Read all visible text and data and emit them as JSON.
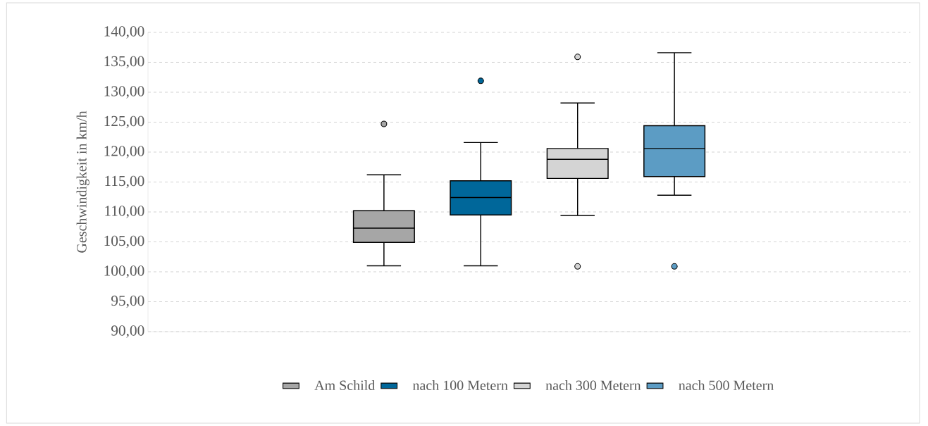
{
  "chart_data": {
    "type": "box",
    "ylabel": "Geschwindigkeit in km/h",
    "categories": [
      null
    ],
    "ylim": [
      90,
      140
    ],
    "yticks": [
      {
        "value": 90,
        "label": "90,00"
      },
      {
        "value": 95,
        "label": "95,00"
      },
      {
        "value": 100,
        "label": "100,00"
      },
      {
        "value": 105,
        "label": "105,00"
      },
      {
        "value": 110,
        "label": "110,00"
      },
      {
        "value": 115,
        "label": "115,00"
      },
      {
        "value": 120,
        "label": "120,00"
      },
      {
        "value": 125,
        "label": "125,00"
      },
      {
        "value": 130,
        "label": "130,00"
      },
      {
        "value": 135,
        "label": "135,00"
      },
      {
        "value": 140,
        "label": "140,00"
      }
    ],
    "grid": "y",
    "legend": "bottom",
    "tick_labels": "y",
    "series": [
      {
        "name": "Am Schild",
        "color": "#a6a6a6",
        "boxes": [
          {
            "low": 101.0,
            "q1": 104.9,
            "median": 107.3,
            "q3": 110.2,
            "high": 116.2,
            "outliers": [
              124.7
            ]
          }
        ]
      },
      {
        "name": "nach 100 Metern",
        "color": "#00679a",
        "boxes": [
          {
            "low": 101.0,
            "q1": 109.5,
            "median": 112.4,
            "q3": 115.2,
            "high": 121.6,
            "outliers": [
              131.9
            ]
          }
        ]
      },
      {
        "name": "nach 300 Metern",
        "color": "#d4d4d4",
        "boxes": [
          {
            "low": 109.4,
            "q1": 115.6,
            "median": 118.8,
            "q3": 120.6,
            "high": 128.2,
            "outliers": [
              135.9,
              100.9
            ]
          }
        ]
      },
      {
        "name": "nach 500 Metern",
        "color": "#5c9cc4",
        "boxes": [
          {
            "low": 112.8,
            "q1": 115.9,
            "median": 120.6,
            "q3": 124.4,
            "high": 136.6,
            "outliers": [
              100.9
            ]
          }
        ]
      }
    ]
  }
}
